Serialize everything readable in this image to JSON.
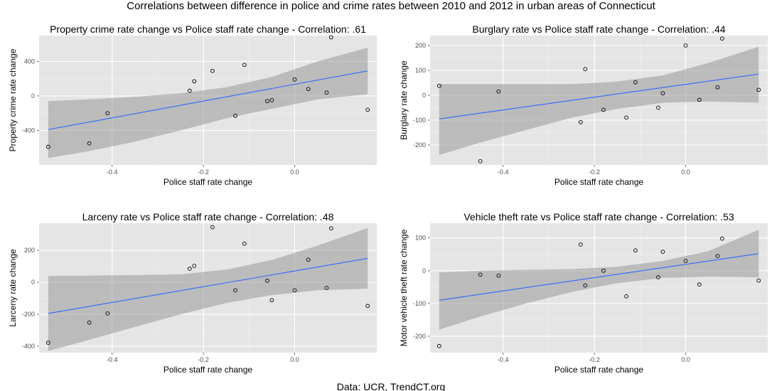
{
  "figure": {
    "title": "Correlations between difference in police and crime rates between 2010 and 2012 in urban areas of Connecticut",
    "caption": "Data: UCR, TrendCT.org",
    "colors": {
      "panel_background": "#e5e5e5",
      "grid": "#ffffff",
      "fit_line": "#3366ff",
      "confidence_band": "#999999",
      "point_stroke": "#000000"
    }
  },
  "chart_data": [
    {
      "type": "scatter",
      "title": "Property crime rate change vs Police staff rate change - Correlation: .61",
      "xlabel": "Police staff rate change",
      "ylabel": "Property crime rate change",
      "xlim": [
        -0.56,
        0.18
      ],
      "ylim": [
        -800,
        700
      ],
      "xticks": [
        -0.4,
        -0.2,
        0.0
      ],
      "xtick_labels": [
        "-0.4",
        "-0.2",
        "0.0"
      ],
      "yticks": [
        -400,
        0,
        400
      ],
      "ytick_labels": [
        "-400",
        "0",
        "400"
      ],
      "grid": true,
      "points": {
        "x": [
          -0.54,
          -0.45,
          -0.41,
          -0.23,
          -0.22,
          -0.18,
          -0.13,
          -0.11,
          -0.06,
          -0.05,
          0.0,
          0.03,
          0.07,
          0.08,
          0.16
        ],
        "y": [
          -590,
          -550,
          -200,
          60,
          170,
          290,
          -230,
          360,
          -60,
          -50,
          190,
          80,
          40,
          680,
          -160
        ]
      },
      "fit": {
        "x": [
          -0.54,
          0.16
        ],
        "y": [
          -390,
          290
        ]
      },
      "band": {
        "x": [
          -0.54,
          -0.45,
          -0.35,
          -0.25,
          -0.15,
          -0.05,
          0.05,
          0.16
        ],
        "upper": [
          -60,
          -40,
          -10,
          30,
          100,
          220,
          400,
          560
        ],
        "lower": [
          -720,
          -640,
          -530,
          -400,
          -260,
          -150,
          -40,
          20
        ]
      }
    },
    {
      "type": "scatter",
      "title": "Burglary rate vs Police staff rate change - Correlation: .44",
      "xlabel": "Police staff rate change",
      "ylabel": "Burglary rate change",
      "xlim": [
        -0.56,
        0.18
      ],
      "ylim": [
        -280,
        240
      ],
      "xticks": [
        -0.4,
        -0.2,
        0.0
      ],
      "xtick_labels": [
        "-0.4",
        "-0.2",
        "0.0"
      ],
      "yticks": [
        -200,
        -100,
        0,
        100,
        200
      ],
      "ytick_labels": [
        "-200",
        "-100",
        "0",
        "100",
        "200"
      ],
      "grid": true,
      "points": {
        "x": [
          -0.54,
          -0.45,
          -0.41,
          -0.23,
          -0.22,
          -0.18,
          -0.13,
          -0.11,
          -0.06,
          -0.05,
          0.0,
          0.03,
          0.07,
          0.08,
          0.16
        ],
        "y": [
          38,
          -265,
          15,
          -108,
          105,
          -58,
          -90,
          52,
          -50,
          8,
          200,
          -18,
          32,
          228,
          22
        ]
      },
      "fit": {
        "x": [
          -0.54,
          0.16
        ],
        "y": [
          -95,
          85
        ]
      },
      "band": {
        "x": [
          -0.54,
          -0.45,
          -0.35,
          -0.25,
          -0.15,
          -0.05,
          0.05,
          0.16
        ],
        "upper": [
          45,
          45,
          45,
          45,
          55,
          80,
          130,
          195
        ],
        "lower": [
          -240,
          -190,
          -140,
          -90,
          -55,
          -30,
          -25,
          -30
        ]
      }
    },
    {
      "type": "scatter",
      "title": "Larceny rate vs Police staff rate change - Correlation: .48",
      "xlabel": "Police staff rate change",
      "ylabel": "Larceny rate change",
      "xlim": [
        -0.56,
        0.18
      ],
      "ylim": [
        -440,
        370
      ],
      "xticks": [
        -0.4,
        -0.2,
        0.0
      ],
      "xtick_labels": [
        "-0.4",
        "-0.2",
        "0.0"
      ],
      "yticks": [
        -400,
        -200,
        0,
        200
      ],
      "ytick_labels": [
        "-400",
        "-200",
        "0",
        "200"
      ],
      "grid": true,
      "points": {
        "x": [
          -0.54,
          -0.45,
          -0.41,
          -0.23,
          -0.22,
          -0.18,
          -0.13,
          -0.11,
          -0.06,
          -0.05,
          0.0,
          0.03,
          0.07,
          0.08,
          0.16
        ],
        "y": [
          -378,
          -252,
          -195,
          85,
          103,
          345,
          -50,
          242,
          10,
          -112,
          -50,
          142,
          -35,
          338,
          -148
        ]
      },
      "fit": {
        "x": [
          -0.54,
          0.16
        ],
        "y": [
          -195,
          150
        ]
      },
      "band": {
        "x": [
          -0.54,
          -0.45,
          -0.35,
          -0.25,
          -0.15,
          -0.05,
          0.05,
          0.16
        ],
        "upper": [
          40,
          42,
          45,
          50,
          80,
          140,
          230,
          340
        ],
        "lower": [
          -430,
          -360,
          -280,
          -200,
          -130,
          -80,
          -50,
          -40
        ]
      }
    },
    {
      "type": "scatter",
      "title": "Vehicle theft rate vs Police staff rate change - Correlation: .53",
      "xlabel": "Police staff rate change",
      "ylabel": "Motor vehicle theft rate change",
      "xlim": [
        -0.56,
        0.18
      ],
      "ylim": [
        -250,
        145
      ],
      "xticks": [
        -0.4,
        -0.2,
        0.0
      ],
      "xtick_labels": [
        "-0.4",
        "-0.2",
        "0.0"
      ],
      "yticks": [
        -200,
        -100,
        0,
        100
      ],
      "ytick_labels": [
        "-200",
        "-100",
        "0",
        "100"
      ],
      "grid": true,
      "points": {
        "x": [
          -0.54,
          -0.45,
          -0.41,
          -0.23,
          -0.22,
          -0.18,
          -0.13,
          -0.11,
          -0.06,
          -0.05,
          0.0,
          0.03,
          0.07,
          0.08,
          0.16
        ],
        "y": [
          -230,
          -12,
          -15,
          80,
          -45,
          0,
          -78,
          62,
          -20,
          58,
          30,
          -42,
          45,
          98,
          -30
        ]
      },
      "fit": {
        "x": [
          -0.54,
          0.16
        ],
        "y": [
          -90,
          52
        ]
      },
      "band": {
        "x": [
          -0.54,
          -0.45,
          -0.35,
          -0.25,
          -0.15,
          -0.05,
          0.05,
          0.16
        ],
        "upper": [
          -5,
          0,
          3,
          5,
          12,
          30,
          60,
          125
        ],
        "lower": [
          -180,
          -140,
          -100,
          -65,
          -38,
          -22,
          -18,
          -20
        ]
      }
    }
  ]
}
